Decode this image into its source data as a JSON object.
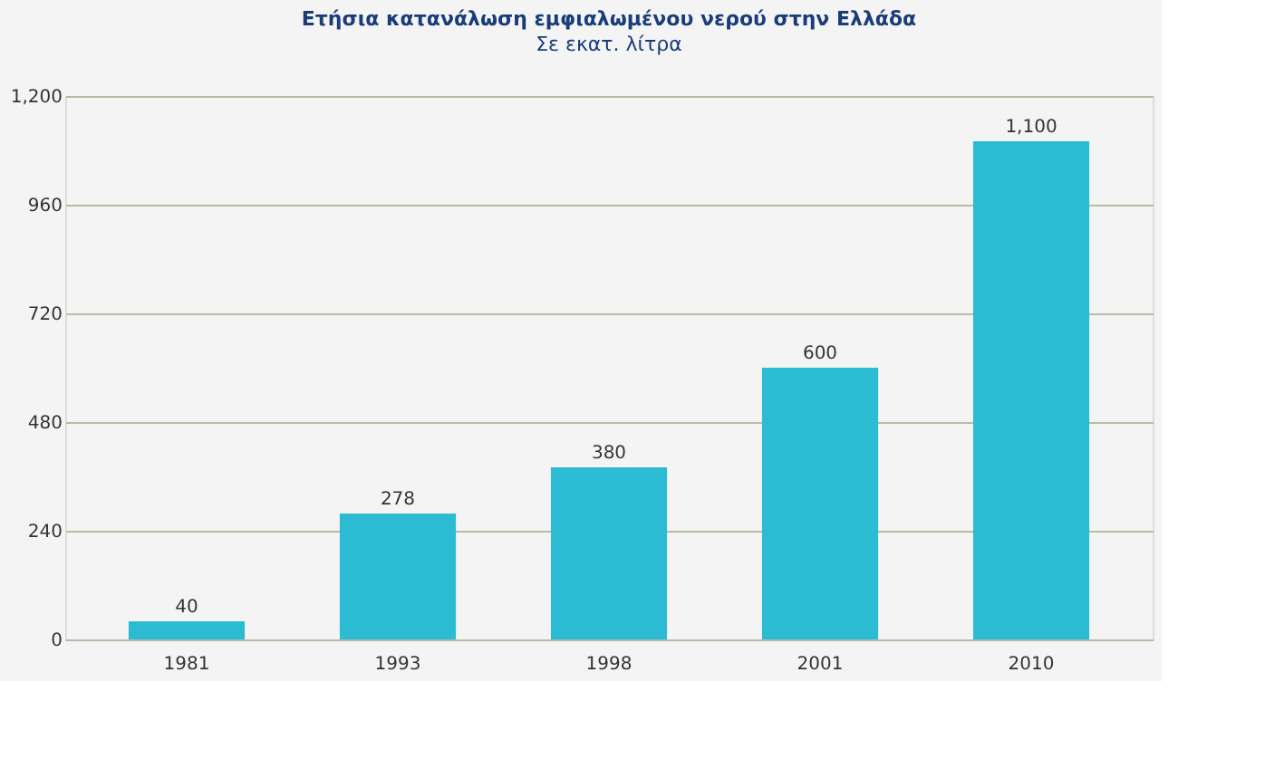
{
  "chart_data": {
    "type": "bar",
    "title": "Ετήσια κατανάλωση εμφιαλωμένου νερού στην Ελλάδα",
    "subtitle": "Σε εκατ. λίτρα",
    "categories": [
      "1981",
      "1993",
      "1998",
      "2001",
      "2010"
    ],
    "values": [
      40,
      278,
      380,
      600,
      1100
    ],
    "value_labels": [
      "40",
      "278",
      "380",
      "600",
      "1,100"
    ],
    "color": "#2bbcd4",
    "ylim": [
      0,
      1200
    ],
    "yticks": [
      0,
      240,
      480,
      720,
      960,
      {
        "value": 1200,
        "label": "1,200"
      }
    ],
    "grid": "y"
  }
}
